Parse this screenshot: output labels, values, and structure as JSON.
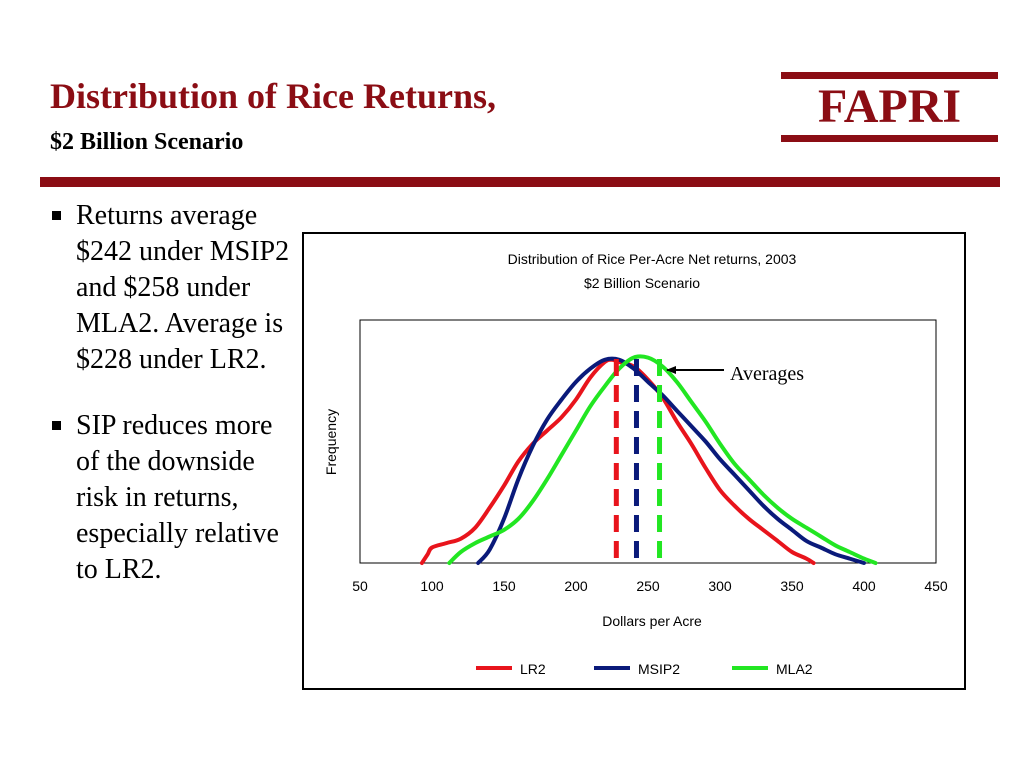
{
  "slide": {
    "title": "Distribution of Rice Returns,",
    "subtitle": "$2 Billion Scenario",
    "logo_text": "FAPRI",
    "accent_color": "#8b0d14"
  },
  "bullets": [
    {
      "text": "Returns average $242 under MSIP2 and $258 under MLA2. Average is $228 under LR2."
    },
    {
      "text": "SIP reduces more of the downside risk in returns, especially relative to LR2."
    }
  ],
  "chart_data": {
    "type": "line",
    "title": "Distribution of Rice Per-Acre Net returns, 2003",
    "subtitle": "$2 Billion Scenario",
    "xlabel": "Dollars per Acre",
    "ylabel": "Frequency",
    "xlim": [
      50,
      450
    ],
    "ylim": [
      0,
      1.1
    ],
    "xticks": [
      50,
      100,
      150,
      200,
      250,
      300,
      350,
      400,
      450
    ],
    "grid": false,
    "legend_position": "bottom",
    "annotation": "Averages",
    "series": [
      {
        "name": "LR2",
        "color": "#e8141c",
        "average": 228,
        "points": [
          [
            93,
            0
          ],
          [
            97,
            0.04
          ],
          [
            100,
            0.07
          ],
          [
            110,
            0.09
          ],
          [
            120,
            0.11
          ],
          [
            130,
            0.16
          ],
          [
            140,
            0.25
          ],
          [
            150,
            0.35
          ],
          [
            160,
            0.46
          ],
          [
            170,
            0.54
          ],
          [
            180,
            0.6
          ],
          [
            190,
            0.66
          ],
          [
            200,
            0.74
          ],
          [
            210,
            0.84
          ],
          [
            220,
            0.91
          ],
          [
            225,
            0.92
          ],
          [
            230,
            0.91
          ],
          [
            240,
            0.89
          ],
          [
            250,
            0.83
          ],
          [
            260,
            0.75
          ],
          [
            270,
            0.64
          ],
          [
            280,
            0.54
          ],
          [
            290,
            0.43
          ],
          [
            300,
            0.33
          ],
          [
            310,
            0.26
          ],
          [
            320,
            0.2
          ],
          [
            330,
            0.15
          ],
          [
            340,
            0.1
          ],
          [
            350,
            0.05
          ],
          [
            360,
            0.02
          ],
          [
            365,
            0
          ]
        ]
      },
      {
        "name": "MSIP2",
        "color": "#0a1a7a",
        "average": 242,
        "points": [
          [
            132,
            0
          ],
          [
            140,
            0.06
          ],
          [
            150,
            0.2
          ],
          [
            160,
            0.38
          ],
          [
            170,
            0.53
          ],
          [
            180,
            0.65
          ],
          [
            190,
            0.74
          ],
          [
            200,
            0.82
          ],
          [
            210,
            0.88
          ],
          [
            220,
            0.92
          ],
          [
            230,
            0.92
          ],
          [
            240,
            0.88
          ],
          [
            250,
            0.82
          ],
          [
            260,
            0.76
          ],
          [
            270,
            0.69
          ],
          [
            280,
            0.62
          ],
          [
            290,
            0.55
          ],
          [
            300,
            0.47
          ],
          [
            310,
            0.4
          ],
          [
            320,
            0.33
          ],
          [
            330,
            0.26
          ],
          [
            340,
            0.2
          ],
          [
            350,
            0.15
          ],
          [
            360,
            0.1
          ],
          [
            370,
            0.07
          ],
          [
            380,
            0.04
          ],
          [
            390,
            0.02
          ],
          [
            400,
            0
          ]
        ]
      },
      {
        "name": "MLA2",
        "color": "#22e622",
        "average": 258,
        "points": [
          [
            112,
            0
          ],
          [
            120,
            0.05
          ],
          [
            130,
            0.09
          ],
          [
            140,
            0.12
          ],
          [
            150,
            0.15
          ],
          [
            160,
            0.2
          ],
          [
            170,
            0.28
          ],
          [
            180,
            0.38
          ],
          [
            190,
            0.49
          ],
          [
            200,
            0.6
          ],
          [
            210,
            0.71
          ],
          [
            220,
            0.8
          ],
          [
            230,
            0.88
          ],
          [
            240,
            0.93
          ],
          [
            250,
            0.93
          ],
          [
            260,
            0.89
          ],
          [
            270,
            0.82
          ],
          [
            280,
            0.73
          ],
          [
            290,
            0.64
          ],
          [
            300,
            0.54
          ],
          [
            310,
            0.45
          ],
          [
            320,
            0.38
          ],
          [
            330,
            0.31
          ],
          [
            340,
            0.25
          ],
          [
            350,
            0.2
          ],
          [
            360,
            0.16
          ],
          [
            370,
            0.12
          ],
          [
            380,
            0.08
          ],
          [
            390,
            0.05
          ],
          [
            400,
            0.02
          ],
          [
            408,
            0
          ]
        ]
      }
    ]
  }
}
